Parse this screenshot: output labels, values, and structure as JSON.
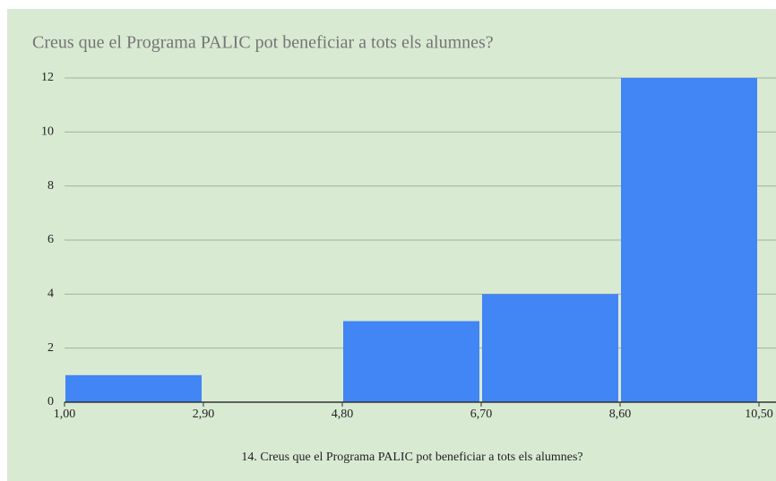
{
  "chart_data": {
    "type": "histogram",
    "title": "Creus que el Programa PALIC pot beneficiar a tots els alumnes?",
    "xlabel": "14. Creus que el Programa PALIC pot beneficiar a tots els alumnes?",
    "bins": [
      1.0,
      2.9,
      4.8,
      6.7,
      8.6,
      10.5
    ],
    "values": [
      1,
      0,
      3,
      4,
      12
    ],
    "color": "#4285f4",
    "xlim": [
      1.0,
      10.5
    ],
    "xticks": [
      {
        "value": 1.0,
        "label": "1,00"
      },
      {
        "value": 2.9,
        "label": "2,90"
      },
      {
        "value": 4.8,
        "label": "4,80"
      },
      {
        "value": 6.7,
        "label": "6,70"
      },
      {
        "value": 8.6,
        "label": "8,60"
      },
      {
        "value": 10.5,
        "label": "10,50"
      }
    ],
    "ylim": [
      0,
      12
    ],
    "yticks": [
      0,
      2,
      4,
      6,
      8,
      10,
      12
    ],
    "grid": true
  }
}
